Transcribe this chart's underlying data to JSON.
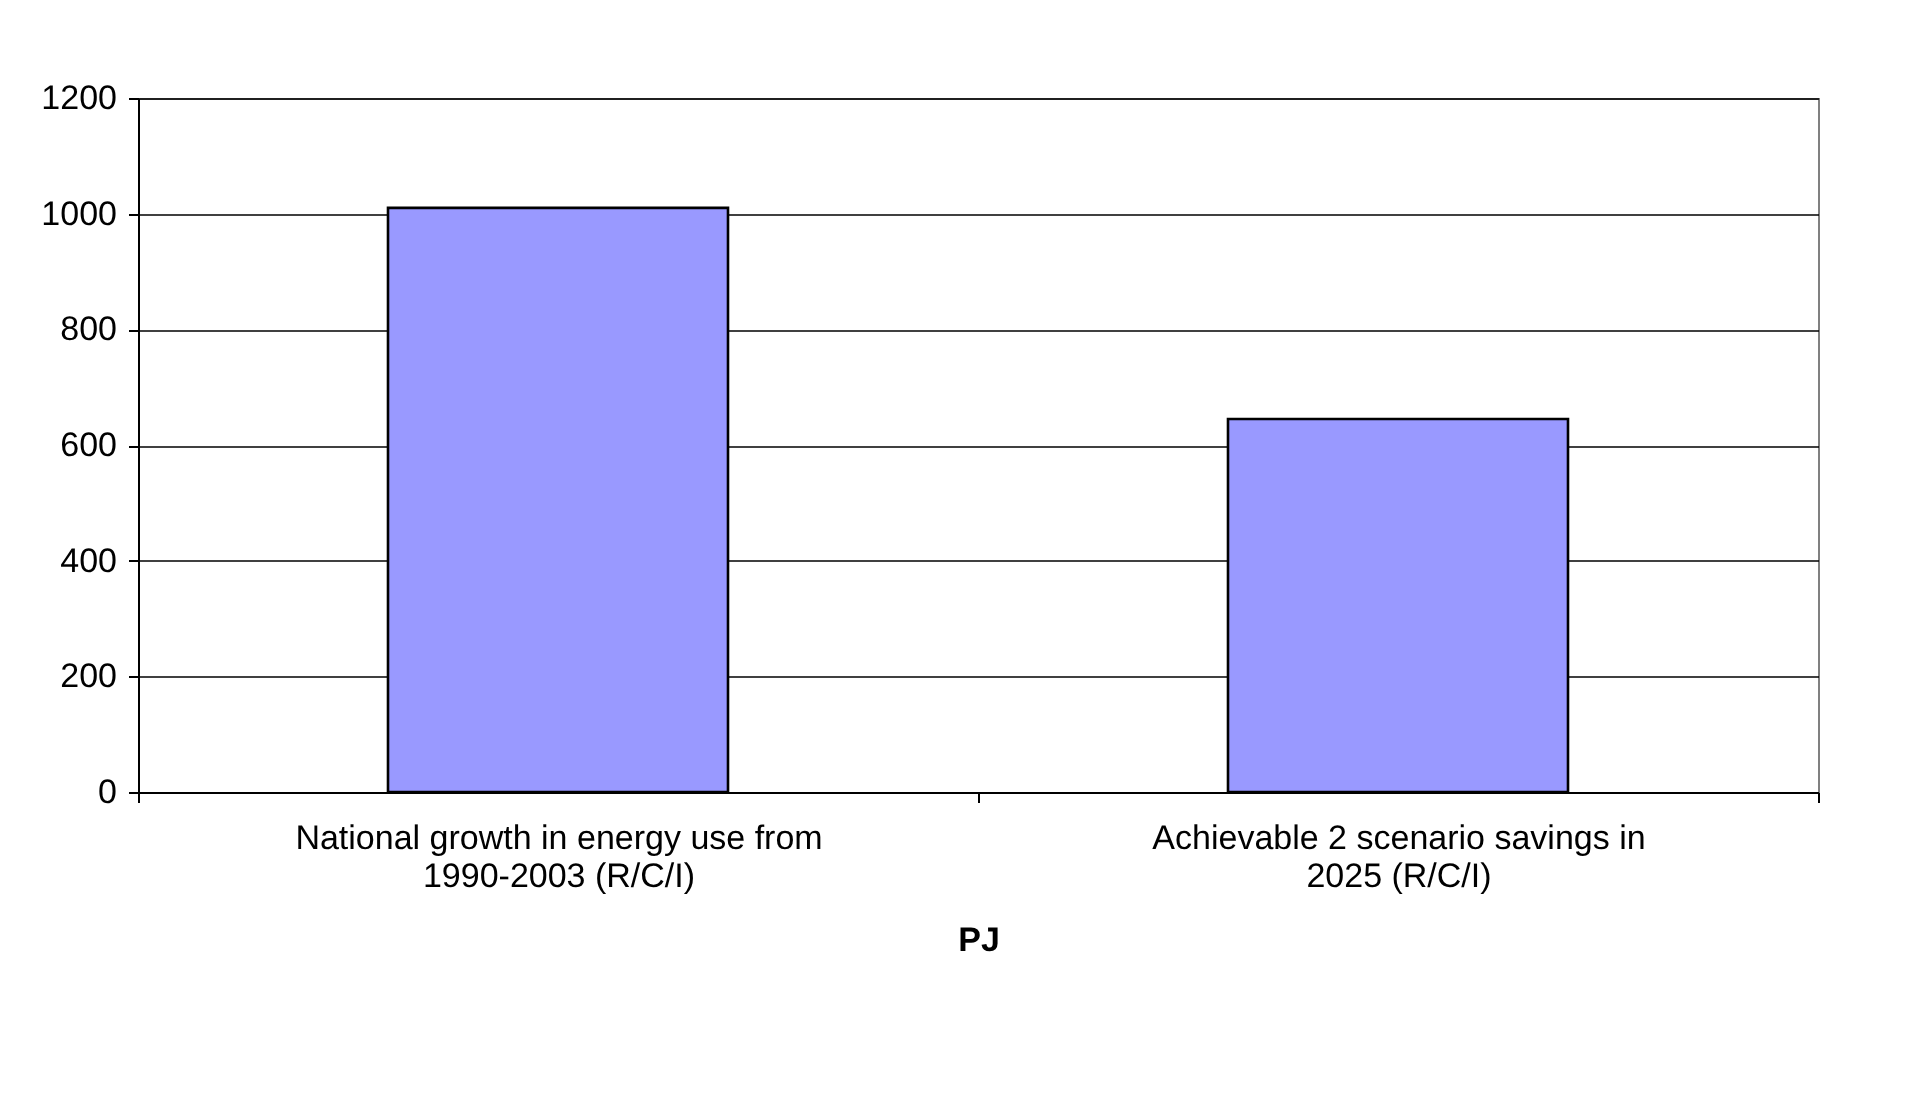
{
  "chart_data": {
    "type": "bar",
    "xlabel": "PJ",
    "categories": [
      "National growth in energy use from 1990-2003 (R/C/I)",
      "Achievable 2 scenario savings in 2025 (R/C/I)"
    ],
    "values": [
      1010,
      645
    ],
    "color": "#9999ff",
    "ylim": [
      0,
      1200
    ],
    "yticks": [
      0,
      200,
      400,
      600,
      800,
      1000,
      1200
    ],
    "grid": "y"
  }
}
